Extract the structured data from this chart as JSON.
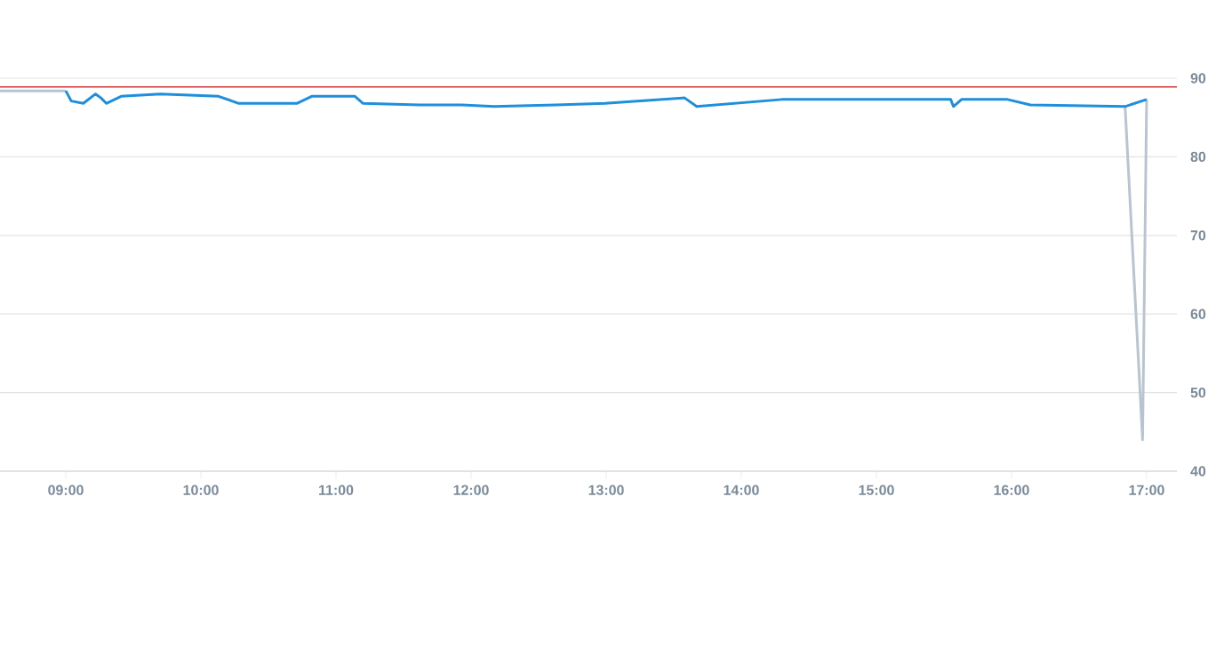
{
  "chart_data": {
    "type": "line",
    "xlim": [
      8.513,
      17.224
    ],
    "xticks": [
      {
        "value": 9,
        "label": "09:00"
      },
      {
        "value": 10,
        "label": "10:00"
      },
      {
        "value": 11,
        "label": "11:00"
      },
      {
        "value": 12,
        "label": "12:00"
      },
      {
        "value": 13,
        "label": "13:00"
      },
      {
        "value": 14,
        "label": "14:00"
      },
      {
        "value": 15,
        "label": "15:00"
      },
      {
        "value": 16,
        "label": "16:00"
      },
      {
        "value": 17,
        "label": "17:00"
      }
    ],
    "ylim": [
      40,
      90
    ],
    "yticks": [
      40,
      50,
      60,
      70,
      80,
      90
    ],
    "grid": "y",
    "marker": "none",
    "line_style": "solid",
    "series": [
      {
        "color": "#b8c5d1",
        "x": [
          8.513,
          9.0,
          12.0,
          16.84,
          16.97,
          17.0
        ],
        "values": [
          88.4,
          88.4,
          null,
          86.6,
          44.0,
          87.3
        ]
      },
      {
        "color": "#1e8fdc",
        "x": [
          9.0,
          9.04,
          9.13,
          9.22,
          9.26,
          9.3,
          9.41,
          9.7,
          10.13,
          10.28,
          10.71,
          10.82,
          11.14,
          11.2,
          11.62,
          11.93,
          12.17,
          12.63,
          12.99,
          13.58,
          13.67,
          14.3,
          15.55,
          15.57,
          15.63,
          15.97,
          16.14,
          16.84,
          17.0
        ],
        "values": [
          88.4,
          87.1,
          86.8,
          88.0,
          87.5,
          86.8,
          87.7,
          88.0,
          87.7,
          86.8,
          86.8,
          87.7,
          87.7,
          86.8,
          86.6,
          86.6,
          86.4,
          86.6,
          86.8,
          87.5,
          86.4,
          87.3,
          87.3,
          86.4,
          87.3,
          87.3,
          86.6,
          86.4,
          87.3
        ]
      }
    ],
    "ref_lines": [
      {
        "axis": "y",
        "value": 88.9,
        "color": "#d0383a",
        "line_style": "solid"
      }
    ]
  }
}
